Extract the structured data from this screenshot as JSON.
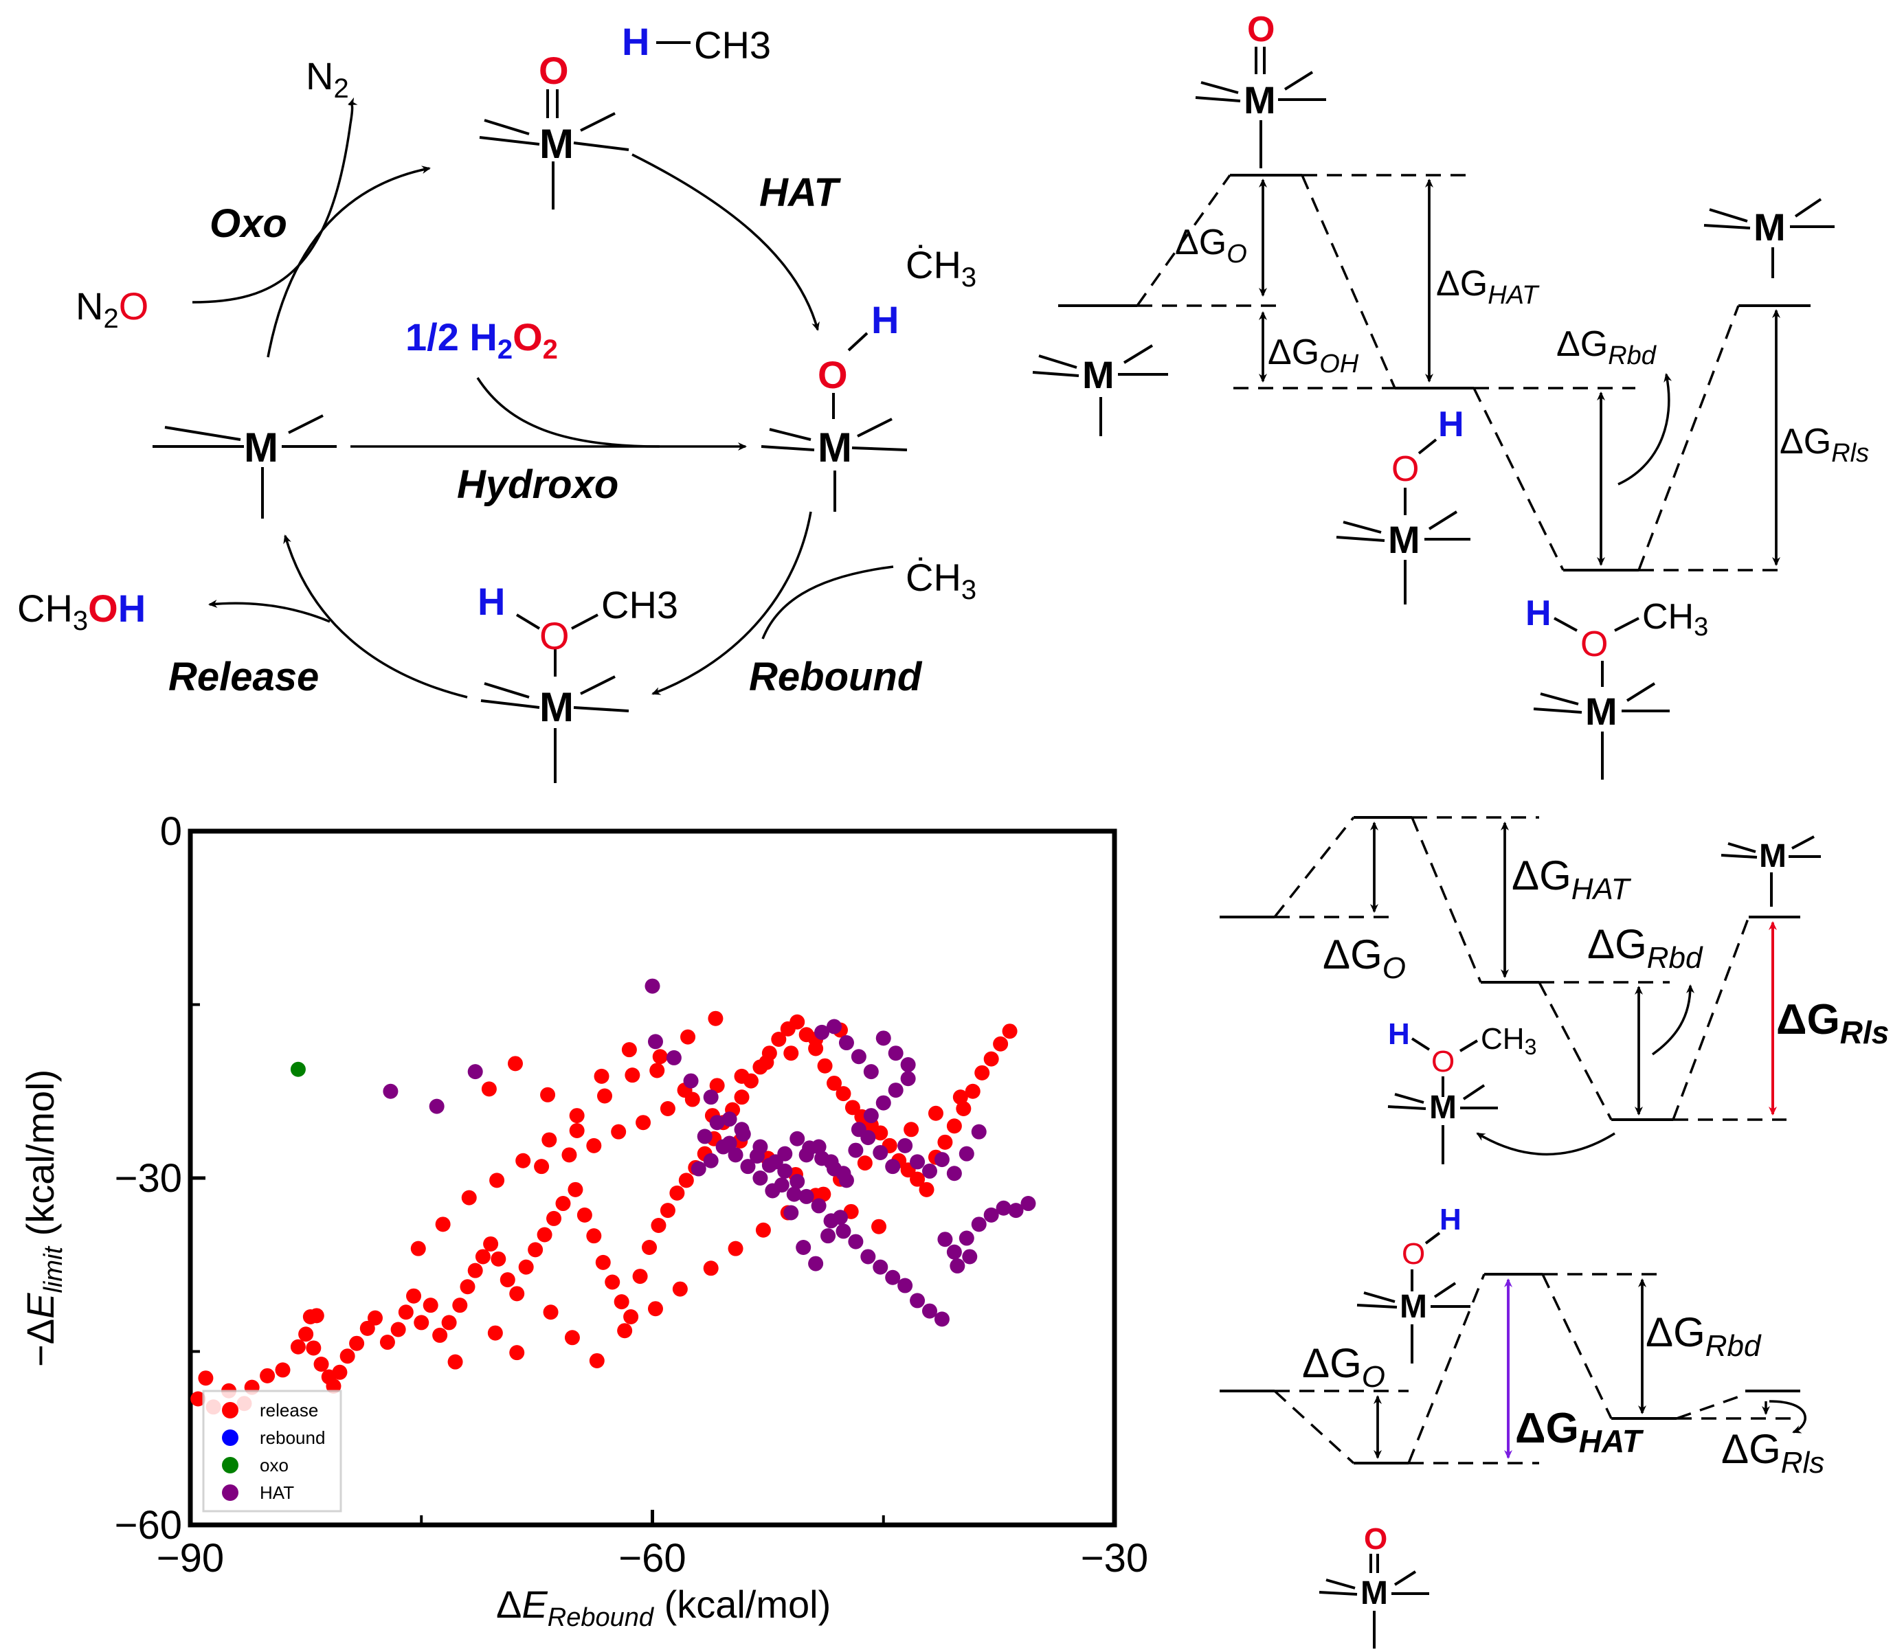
{
  "cycle": {
    "metal": "M",
    "steps": {
      "oxo": "Oxo",
      "hat": "HAT",
      "hydroxo": "Hydroxo",
      "rebound": "Rebound",
      "release": "Release"
    },
    "species": {
      "n2": "N2",
      "n2o": "N2O",
      "methane_h": "H",
      "methane_ch3": "CH3",
      "methyl_radical": "·CH3",
      "peroxide": "1/2 H2O2",
      "methanol": "CH3OH",
      "oxo_o": "O",
      "hydroxo_h": "H",
      "rebound_ch3": "CH3"
    }
  },
  "energy_diagrams": {
    "labels": {
      "dG_O": "ΔGO",
      "dG_HAT": "ΔGHAT",
      "dG_OH": "ΔGOH",
      "dG_Rbd": "ΔGRbd",
      "dG_Rls": "ΔGRls"
    },
    "colors": {
      "release_limiting": "#e8001c",
      "hat_limiting": "#7b1fe0"
    }
  },
  "scatter": {
    "xlabel": "ΔERebound (kcal/mol)",
    "ylabel": "−ΔElimit (kcal/mol)",
    "legend": [
      {
        "name": "release",
        "color": "#ff0000"
      },
      {
        "name": "rebound",
        "color": "#0000ff"
      },
      {
        "name": "oxo",
        "color": "#008000"
      },
      {
        "name": "HAT",
        "color": "#800080"
      }
    ]
  },
  "chart_data": {
    "type": "scatter",
    "xlim": [
      -90,
      -30
    ],
    "ylim": [
      -60,
      0
    ],
    "xticks": [
      -90,
      -60,
      -30
    ],
    "yticks": [
      -60,
      -30,
      0
    ],
    "legend_position": "bottom-left",
    "series": [
      {
        "name": "release",
        "color": "#ff0000",
        "points": [
          [
            -89.5,
            -49.1
          ],
          [
            -89.0,
            -47.3
          ],
          [
            -88.5,
            -49.8
          ],
          [
            -87.5,
            -48.4
          ],
          [
            -86.5,
            -49.5
          ],
          [
            -86.0,
            -48.1
          ],
          [
            -85.0,
            -47.1
          ],
          [
            -84.0,
            -46.6
          ],
          [
            -83.0,
            -44.6
          ],
          [
            -82.5,
            -43.5
          ],
          [
            -82.2,
            -42.0
          ],
          [
            -81.8,
            -41.9
          ],
          [
            -82.0,
            -44.7
          ],
          [
            -81.5,
            -46.1
          ],
          [
            -81.0,
            -47.2
          ],
          [
            -80.7,
            -48.0
          ],
          [
            -80.3,
            -46.8
          ],
          [
            -79.8,
            -45.4
          ],
          [
            -79.2,
            -44.3
          ],
          [
            -78.5,
            -43.0
          ],
          [
            -78.0,
            -42.1
          ],
          [
            -77.2,
            -44.2
          ],
          [
            -76.5,
            -43.1
          ],
          [
            -76.0,
            -41.6
          ],
          [
            -75.5,
            -40.2
          ],
          [
            -75.0,
            -42.5
          ],
          [
            -74.4,
            -41.0
          ],
          [
            -73.8,
            -43.6
          ],
          [
            -73.2,
            -42.5
          ],
          [
            -72.5,
            -41.0
          ],
          [
            -72.0,
            -39.4
          ],
          [
            -71.5,
            -38.0
          ],
          [
            -71.0,
            -36.8
          ],
          [
            -70.5,
            -35.7
          ],
          [
            -70.0,
            -37.0
          ],
          [
            -69.4,
            -38.8
          ],
          [
            -68.8,
            -40.0
          ],
          [
            -68.2,
            -37.7
          ],
          [
            -67.6,
            -36.2
          ],
          [
            -67.0,
            -34.9
          ],
          [
            -66.4,
            -33.5
          ],
          [
            -65.8,
            -32.2
          ],
          [
            -65.0,
            -31.0
          ],
          [
            -64.4,
            -33.2
          ],
          [
            -63.8,
            -35.0
          ],
          [
            -63.2,
            -37.3
          ],
          [
            -62.6,
            -39.0
          ],
          [
            -62.0,
            -40.7
          ],
          [
            -61.4,
            -42.0
          ],
          [
            -60.8,
            -38.5
          ],
          [
            -60.2,
            -36.0
          ],
          [
            -59.6,
            -34.1
          ],
          [
            -59.0,
            -32.8
          ],
          [
            -58.4,
            -31.3
          ],
          [
            -57.8,
            -30.2
          ],
          [
            -57.2,
            -29.1
          ],
          [
            -56.6,
            -27.9
          ],
          [
            -56.0,
            -26.6
          ],
          [
            -55.4,
            -25.2
          ],
          [
            -54.8,
            -24.1
          ],
          [
            -54.2,
            -23.0
          ],
          [
            -53.6,
            -21.6
          ],
          [
            -53.0,
            -20.4
          ],
          [
            -52.4,
            -19.2
          ],
          [
            -51.8,
            -18.0
          ],
          [
            -51.2,
            -17.1
          ],
          [
            -50.6,
            -16.5
          ],
          [
            -50.0,
            -17.6
          ],
          [
            -49.4,
            -18.8
          ],
          [
            -48.8,
            -20.3
          ],
          [
            -48.2,
            -21.8
          ],
          [
            -47.6,
            -22.7
          ],
          [
            -47.0,
            -23.9
          ],
          [
            -46.4,
            -24.7
          ],
          [
            -45.8,
            -25.4
          ],
          [
            -45.2,
            -26.1
          ],
          [
            -44.6,
            -27.2
          ],
          [
            -44.0,
            -28.5
          ],
          [
            -43.4,
            -29.3
          ],
          [
            -42.8,
            -30.1
          ],
          [
            -42.2,
            -31.0
          ],
          [
            -41.6,
            -28.2
          ],
          [
            -41.0,
            -26.9
          ],
          [
            -40.4,
            -25.5
          ],
          [
            -39.8,
            -24.0
          ],
          [
            -39.2,
            -22.5
          ],
          [
            -38.6,
            -20.9
          ],
          [
            -38.0,
            -19.7
          ],
          [
            -37.4,
            -18.4
          ],
          [
            -36.8,
            -17.3
          ],
          [
            -72.8,
            -45.9
          ],
          [
            -70.2,
            -43.4
          ],
          [
            -68.8,
            -45.1
          ],
          [
            -66.6,
            -41.6
          ],
          [
            -65.2,
            -43.8
          ],
          [
            -63.6,
            -45.8
          ],
          [
            -61.8,
            -43.2
          ],
          [
            -59.8,
            -41.3
          ],
          [
            -58.2,
            -39.6
          ],
          [
            -56.2,
            -37.8
          ],
          [
            -54.6,
            -36.1
          ],
          [
            -52.8,
            -34.5
          ],
          [
            -51.2,
            -33.0
          ],
          [
            -49.4,
            -31.5
          ],
          [
            -47.8,
            -30.1
          ],
          [
            -46.2,
            -28.7
          ],
          [
            -44.6,
            -27.2
          ],
          [
            -43.2,
            -25.8
          ],
          [
            -41.6,
            -24.4
          ],
          [
            -40.0,
            -23.0
          ],
          [
            -67.2,
            -29.0
          ],
          [
            -65.4,
            -28.0
          ],
          [
            -63.8,
            -27.2
          ],
          [
            -62.2,
            -26.0
          ],
          [
            -60.6,
            -25.2
          ],
          [
            -59.0,
            -24.0
          ],
          [
            -57.4,
            -23.2
          ],
          [
            -55.8,
            -22.0
          ],
          [
            -54.2,
            -21.2
          ],
          [
            -52.6,
            -20.0
          ],
          [
            -51.0,
            -19.2
          ],
          [
            -49.4,
            -18.0
          ],
          [
            -47.8,
            -17.2
          ],
          [
            -70.6,
            -22.3
          ],
          [
            -68.9,
            -20.1
          ],
          [
            -66.8,
            -22.8
          ],
          [
            -64.9,
            -25.9
          ],
          [
            -63.3,
            -21.2
          ],
          [
            -61.5,
            -18.9
          ],
          [
            -59.7,
            -20.7
          ],
          [
            -57.9,
            -22.4
          ],
          [
            -56.1,
            -24.6
          ],
          [
            -54.3,
            -26.8
          ],
          [
            -52.5,
            -28.3
          ],
          [
            -50.7,
            -29.7
          ],
          [
            -48.9,
            -31.4
          ],
          [
            -47.1,
            -32.9
          ],
          [
            -45.3,
            -34.2
          ],
          [
            -75.2,
            -36.1
          ],
          [
            -73.6,
            -34.0
          ],
          [
            -71.9,
            -31.7
          ],
          [
            -70.1,
            -30.2
          ],
          [
            -68.4,
            -28.5
          ],
          [
            -66.7,
            -26.7
          ],
          [
            -64.9,
            -24.6
          ],
          [
            -63.1,
            -22.9
          ],
          [
            -61.3,
            -21.1
          ],
          [
            -59.5,
            -19.5
          ],
          [
            -57.7,
            -17.8
          ],
          [
            -55.9,
            -16.2
          ]
        ]
      },
      {
        "name": "rebound",
        "color": "#0000ff",
        "points": []
      },
      {
        "name": "oxo",
        "color": "#008000",
        "points": [
          [
            -83.0,
            -20.6
          ]
        ]
      },
      {
        "name": "HAT",
        "color": "#800080",
        "points": [
          [
            -77.0,
            -22.5
          ],
          [
            -74.0,
            -23.8
          ],
          [
            -71.5,
            -20.8
          ],
          [
            -60.0,
            -13.4
          ],
          [
            -59.8,
            -18.2
          ],
          [
            -58.6,
            -19.6
          ],
          [
            -57.5,
            -21.6
          ],
          [
            -56.2,
            -23.0
          ],
          [
            -55.0,
            -24.9
          ],
          [
            -54.1,
            -26.2
          ],
          [
            -53.0,
            -27.3
          ],
          [
            -52.0,
            -28.6
          ],
          [
            -51.4,
            -29.4
          ],
          [
            -50.6,
            -30.3
          ],
          [
            -50.0,
            -31.6
          ],
          [
            -49.2,
            -32.4
          ],
          [
            -48.4,
            -33.7
          ],
          [
            -47.6,
            -34.6
          ],
          [
            -46.8,
            -35.5
          ],
          [
            -46.0,
            -36.8
          ],
          [
            -45.2,
            -37.7
          ],
          [
            -44.4,
            -38.6
          ],
          [
            -43.6,
            -39.3
          ],
          [
            -42.8,
            -40.6
          ],
          [
            -42.0,
            -41.5
          ],
          [
            -41.2,
            -42.2
          ],
          [
            -40.4,
            -36.4
          ],
          [
            -39.6,
            -35.2
          ],
          [
            -38.8,
            -34.0
          ],
          [
            -38.0,
            -33.2
          ],
          [
            -37.2,
            -32.6
          ],
          [
            -36.4,
            -32.8
          ],
          [
            -35.6,
            -32.2
          ],
          [
            -57.0,
            -29.2
          ],
          [
            -56.2,
            -28.5
          ],
          [
            -55.4,
            -27.3
          ],
          [
            -54.6,
            -28.0
          ],
          [
            -53.8,
            -29.0
          ],
          [
            -53.0,
            -30.0
          ],
          [
            -52.2,
            -31.1
          ],
          [
            -51.4,
            -27.9
          ],
          [
            -50.6,
            -26.6
          ],
          [
            -49.8,
            -27.4
          ],
          [
            -49.0,
            -28.3
          ],
          [
            -48.2,
            -29.2
          ],
          [
            -47.4,
            -30.2
          ],
          [
            -46.6,
            -25.8
          ],
          [
            -45.8,
            -24.6
          ],
          [
            -45.0,
            -23.5
          ],
          [
            -44.2,
            -22.4
          ],
          [
            -43.4,
            -21.4
          ],
          [
            -49.0,
            -17.4
          ],
          [
            -48.2,
            -16.9
          ],
          [
            -47.4,
            -18.3
          ],
          [
            -46.6,
            -19.5
          ],
          [
            -45.8,
            -20.8
          ],
          [
            -45.0,
            -17.9
          ],
          [
            -44.2,
            -19.2
          ],
          [
            -43.4,
            -20.2
          ],
          [
            -53.2,
            -28.1
          ],
          [
            -52.4,
            -28.9
          ],
          [
            -51.6,
            -30.6
          ],
          [
            -50.8,
            -31.4
          ],
          [
            -50.0,
            -28.0
          ],
          [
            -49.2,
            -27.3
          ],
          [
            -48.4,
            -28.6
          ],
          [
            -47.6,
            -29.6
          ],
          [
            -46.8,
            -27.6
          ],
          [
            -46.0,
            -26.5
          ],
          [
            -45.2,
            -27.8
          ],
          [
            -44.4,
            -29.0
          ],
          [
            -43.6,
            -27.2
          ],
          [
            -42.8,
            -28.6
          ],
          [
            -42.0,
            -29.4
          ],
          [
            -41.2,
            -28.4
          ],
          [
            -40.4,
            -29.6
          ],
          [
            -39.6,
            -27.9
          ],
          [
            -38.8,
            -26.0
          ],
          [
            -56.6,
            -26.4
          ],
          [
            -55.8,
            -25.2
          ],
          [
            -55.0,
            -27.0
          ],
          [
            -54.2,
            -25.8
          ],
          [
            -51.0,
            -33.0
          ],
          [
            -50.2,
            -36.0
          ],
          [
            -49.4,
            -37.4
          ],
          [
            -48.6,
            -35.0
          ],
          [
            -47.8,
            -33.4
          ],
          [
            -41.0,
            -35.3
          ],
          [
            -40.2,
            -37.6
          ],
          [
            -39.4,
            -36.8
          ]
        ]
      }
    ]
  }
}
